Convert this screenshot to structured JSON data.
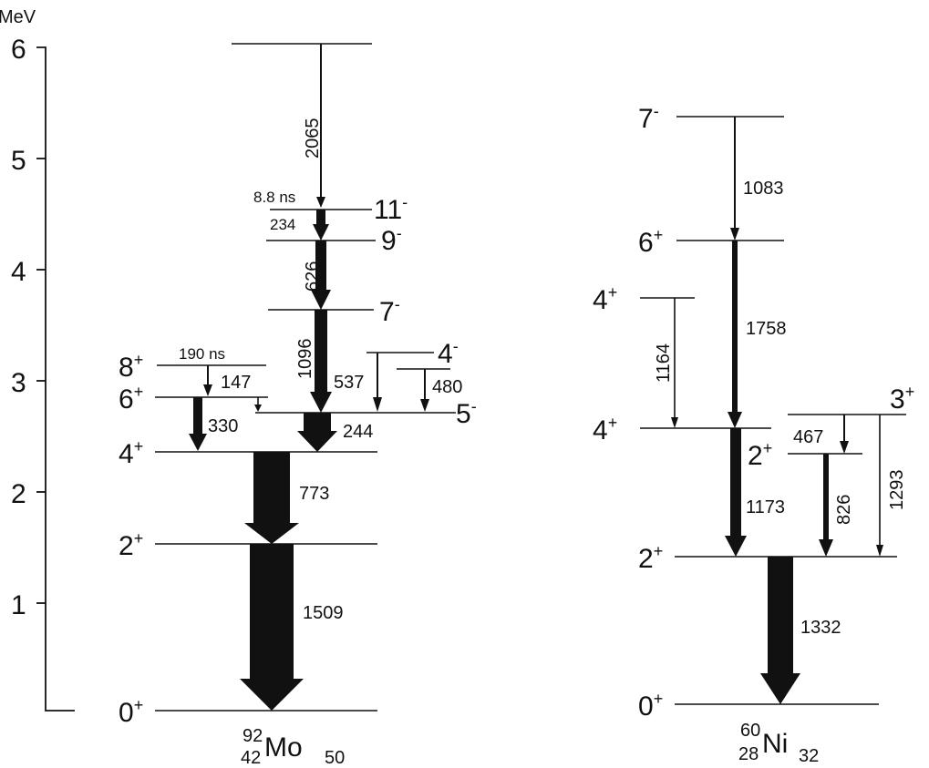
{
  "axis": {
    "unit": "MeV",
    "ticks": [
      {
        "value": 6,
        "label": "6"
      },
      {
        "value": 5,
        "label": "5"
      },
      {
        "value": 4,
        "label": "4"
      },
      {
        "value": 3,
        "label": "3"
      },
      {
        "value": 2,
        "label": "2"
      },
      {
        "value": 1,
        "label": "1"
      }
    ]
  },
  "mo92": {
    "nuclide": {
      "mass": "92",
      "atomic": "42",
      "symbol": "Mo",
      "neutrons": "50"
    },
    "spins": {
      "s11m": {
        "j": "11",
        "p": "-"
      },
      "s9m": {
        "j": "9",
        "p": "-"
      },
      "s7m": {
        "j": "7",
        "p": "-"
      },
      "s4m": {
        "j": "4",
        "p": "-"
      },
      "s5m": {
        "j": "5",
        "p": "-"
      },
      "s8p": {
        "j": "8",
        "p": "+"
      },
      "s6p": {
        "j": "6",
        "p": "+"
      },
      "s4p": {
        "j": "4",
        "p": "+"
      },
      "s2p": {
        "j": "2",
        "p": "+"
      },
      "s0p": {
        "j": "0",
        "p": "+"
      }
    },
    "lifetimes": {
      "l11": "8.8 ns",
      "l8": "190 ns"
    },
    "transitions": {
      "t2065": "2065",
      "t234": "234",
      "t626": "626",
      "t1096": "1096",
      "t537": "537",
      "t480": "480",
      "t147": "147",
      "t330": "330",
      "t244": "244",
      "t773": "773",
      "t1509": "1509"
    }
  },
  "ni60": {
    "nuclide": {
      "mass": "60",
      "atomic": "28",
      "symbol": "Ni",
      "neutrons": "32"
    },
    "spins": {
      "s7m": {
        "j": "7",
        "p": "-"
      },
      "s6p": {
        "j": "6",
        "p": "+"
      },
      "s4pa": {
        "j": "4",
        "p": "+"
      },
      "s4pb": {
        "j": "4",
        "p": "+"
      },
      "s3p": {
        "j": "3",
        "p": "+"
      },
      "s2pa": {
        "j": "2",
        "p": "+"
      },
      "s2pb": {
        "j": "2",
        "p": "+"
      },
      "s0p": {
        "j": "0",
        "p": "+"
      }
    },
    "transitions": {
      "t1083": "1083",
      "t1758": "1758",
      "t1164": "1164",
      "t467": "467",
      "t1173": "1173",
      "t826": "826",
      "t1293": "1293",
      "t1332": "1332"
    }
  }
}
